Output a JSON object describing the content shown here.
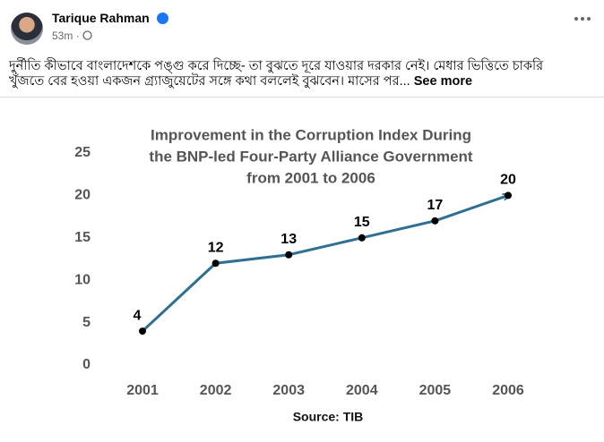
{
  "post": {
    "author": "Tarique Rahman",
    "time": "53m",
    "meta_separator": "·",
    "text_lines": [
      "দুর্নীতি কীভাবে বাংলাদেশকে পঙ্গু করে দিচ্ছে- তা বুঝতে দূরে যাওয়ার দরকার নেই। মেধার ভিত্তিতে চাকরি",
      "খুঁজতে বের হওয়া একজন গ্র্যাজুয়েটের সঙ্গে কথা বললেই বুঝবেন। মাসের পর..."
    ],
    "see_more": "See more"
  },
  "chart_data": {
    "type": "line",
    "title": [
      "Improvement in the Corruption Index During",
      "the BNP-led Four-Party Alliance Government",
      "from 2001 to 2006"
    ],
    "categories": [
      "2001",
      "2002",
      "2003",
      "2004",
      "2005",
      "2006"
    ],
    "values": [
      4,
      12,
      13,
      15,
      17,
      20
    ],
    "color": "#2f6f8f",
    "ylim": [
      0,
      25
    ],
    "yticks": [
      0,
      5,
      10,
      15,
      20,
      25
    ],
    "grid": false,
    "source": "Source: TIB"
  }
}
